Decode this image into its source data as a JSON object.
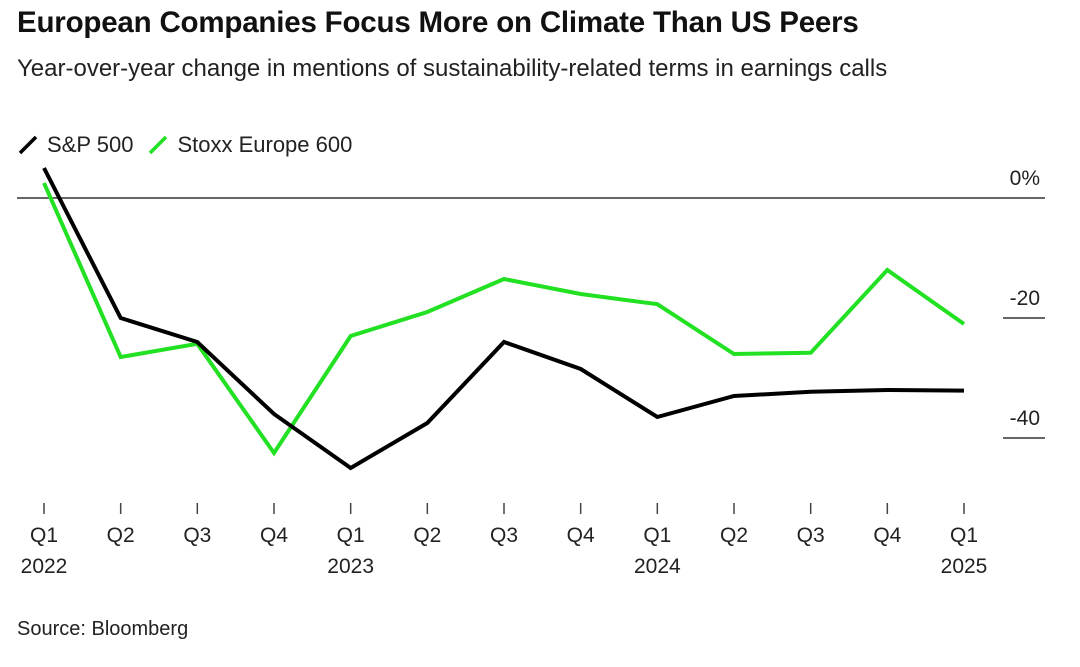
{
  "header": {
    "title": "European Companies Focus More on Climate Than US Peers",
    "subtitle": "Year-over-year change in mentions of sustainability-related terms in earnings calls"
  },
  "footer": {
    "source": "Source: Bloomberg"
  },
  "chart_data": {
    "type": "line",
    "title": "European Companies Focus More on Climate Than US Peers",
    "subtitle": "Year-over-year change in mentions of sustainability-related terms in earnings calls",
    "categories": [
      "Q1 2022",
      "Q2 2022",
      "Q3 2022",
      "Q4 2022",
      "Q1 2023",
      "Q2 2023",
      "Q3 2023",
      "Q4 2023",
      "Q1 2024",
      "Q2 2024",
      "Q3 2024",
      "Q4 2024",
      "Q1 2025"
    ],
    "x_tick_quarters": [
      "Q1",
      "Q2",
      "Q3",
      "Q4",
      "Q1",
      "Q2",
      "Q3",
      "Q4",
      "Q1",
      "Q2",
      "Q3",
      "Q4",
      "Q1"
    ],
    "x_tick_years": [
      "2022",
      "",
      "",
      "",
      "2023",
      "",
      "",
      "",
      "2024",
      "",
      "",
      "",
      "2025"
    ],
    "y_ticks": [
      {
        "value": 0,
        "label": "0%"
      },
      {
        "value": -20,
        "label": "-20"
      },
      {
        "value": -40,
        "label": "-40"
      }
    ],
    "ylim": [
      -50,
      5
    ],
    "legend_position": "top-left",
    "series": [
      {
        "name": "S&P 500",
        "color": "#000000",
        "values": [
          5,
          -20,
          -24,
          -36,
          -45,
          -37.5,
          -24,
          -28.5,
          -36.5,
          -33,
          -32.3,
          -32,
          -32.1
        ]
      },
      {
        "name": "Stoxx Europe 600",
        "color": "#22e022",
        "values": [
          2.5,
          -26.5,
          -24.3,
          -42.5,
          -23,
          -19,
          -13.5,
          -16,
          -17.7,
          -26,
          -25.8,
          -12,
          -21
        ]
      }
    ]
  }
}
